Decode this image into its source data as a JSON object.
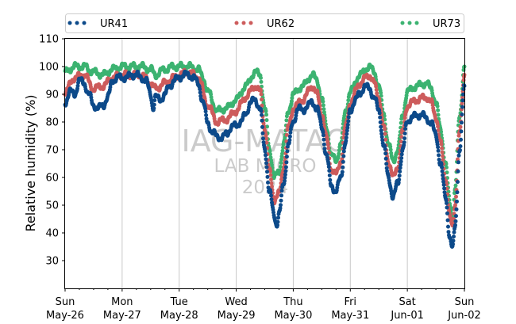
{
  "chart_data": {
    "type": "scatter",
    "ylabel": "Relative humidity (%)",
    "xlabel": "",
    "ylim": [
      20,
      110
    ],
    "xlim": [
      "2024-05-26 00:00",
      "2024-06-02 00:00"
    ],
    "grid": "vertical",
    "legend": "top",
    "yticks": [
      30,
      40,
      50,
      60,
      70,
      80,
      90,
      100,
      110
    ],
    "xticks": [
      {
        "day": "Sun",
        "date": "May-26"
      },
      {
        "day": "Mon",
        "date": "May-27"
      },
      {
        "day": "Tue",
        "date": "May-28"
      },
      {
        "day": "Wed",
        "date": "May-29"
      },
      {
        "day": "Thu",
        "date": "May-30"
      },
      {
        "day": "Fri",
        "date": "May-31"
      },
      {
        "day": "Sat",
        "date": "Jun-01"
      },
      {
        "day": "Sun",
        "date": "Jun-02"
      }
    ],
    "watermark": [
      "IAG-MATAO",
      "LAB MICRO",
      "2024"
    ],
    "series": [
      {
        "name": "UR41",
        "color": "#0d4a8a",
        "points": [
          [
            "2024-05-26 00:00",
            87
          ],
          [
            "2024-05-26 02:00",
            91
          ],
          [
            "2024-05-26 04:00",
            90
          ],
          [
            "2024-05-26 06:00",
            95
          ],
          [
            "2024-05-26 08:00",
            94
          ],
          [
            "2024-05-26 10:00",
            90
          ],
          [
            "2024-05-26 12:00",
            86
          ],
          [
            "2024-05-26 14:00",
            85
          ],
          [
            "2024-05-26 16:00",
            86
          ],
          [
            "2024-05-26 18:00",
            89
          ],
          [
            "2024-05-26 20:00",
            95
          ],
          [
            "2024-05-26 22:00",
            96
          ],
          [
            "2024-05-27 00:00",
            96
          ],
          [
            "2024-05-27 02:00",
            96
          ],
          [
            "2024-05-27 04:00",
            97
          ],
          [
            "2024-05-27 06:00",
            97
          ],
          [
            "2024-05-27 08:00",
            96
          ],
          [
            "2024-05-27 10:00",
            95
          ],
          [
            "2024-05-27 12:00",
            90
          ],
          [
            "2024-05-27 13:00",
            85
          ],
          [
            "2024-05-27 14:00",
            89
          ],
          [
            "2024-05-27 16:00",
            88
          ],
          [
            "2024-05-27 18:00",
            90
          ],
          [
            "2024-05-27 20:00",
            93
          ],
          [
            "2024-05-27 22:00",
            95
          ],
          [
            "2024-05-28 00:00",
            96
          ],
          [
            "2024-05-28 02:00",
            97
          ],
          [
            "2024-05-28 04:00",
            97
          ],
          [
            "2024-05-28 06:00",
            96
          ],
          [
            "2024-05-28 08:00",
            94
          ],
          [
            "2024-05-28 10:00",
            87
          ],
          [
            "2024-05-28 12:00",
            80
          ],
          [
            "2024-05-28 14:00",
            76
          ],
          [
            "2024-05-28 16:00",
            75
          ],
          [
            "2024-05-28 18:00",
            74
          ],
          [
            "2024-05-28 20:00",
            76
          ],
          [
            "2024-05-28 22:00",
            78
          ],
          [
            "2024-05-29 00:00",
            79
          ],
          [
            "2024-05-29 02:00",
            80
          ],
          [
            "2024-05-29 04:00",
            83
          ],
          [
            "2024-05-29 06:00",
            87
          ],
          [
            "2024-05-29 08:00",
            88
          ],
          [
            "2024-05-29 10:00",
            85
          ],
          [
            "2024-05-29 12:00",
            70
          ],
          [
            "2024-05-29 14:00",
            55
          ],
          [
            "2024-05-29 16:00",
            46
          ],
          [
            "2024-05-29 17:00",
            43
          ],
          [
            "2024-05-29 18:00",
            47
          ],
          [
            "2024-05-29 20:00",
            58
          ],
          [
            "2024-05-29 22:00",
            72
          ],
          [
            "2024-05-30 00:00",
            80
          ],
          [
            "2024-05-30 02:00",
            85
          ],
          [
            "2024-05-30 04:00",
            84
          ],
          [
            "2024-05-30 06:00",
            86
          ],
          [
            "2024-05-30 08:00",
            87
          ],
          [
            "2024-05-30 10:00",
            85
          ],
          [
            "2024-05-30 12:00",
            78
          ],
          [
            "2024-05-30 14:00",
            68
          ],
          [
            "2024-05-30 16:00",
            57
          ],
          [
            "2024-05-30 18:00",
            55
          ],
          [
            "2024-05-30 20:00",
            60
          ],
          [
            "2024-05-30 22:00",
            73
          ],
          [
            "2024-05-31 00:00",
            84
          ],
          [
            "2024-05-31 02:00",
            88
          ],
          [
            "2024-05-31 04:00",
            90
          ],
          [
            "2024-05-31 06:00",
            93
          ],
          [
            "2024-05-31 08:00",
            92
          ],
          [
            "2024-05-31 10:00",
            89
          ],
          [
            "2024-05-31 12:00",
            84
          ],
          [
            "2024-05-31 14:00",
            72
          ],
          [
            "2024-05-31 16:00",
            60
          ],
          [
            "2024-05-31 18:00",
            53
          ],
          [
            "2024-05-31 20:00",
            58
          ],
          [
            "2024-05-31 22:00",
            70
          ],
          [
            "2024-06-01 00:00",
            80
          ],
          [
            "2024-06-01 02:00",
            82
          ],
          [
            "2024-06-01 04:00",
            82
          ],
          [
            "2024-06-01 06:00",
            83
          ],
          [
            "2024-06-01 08:00",
            81
          ],
          [
            "2024-06-01 10:00",
            80
          ],
          [
            "2024-06-01 12:00",
            75
          ],
          [
            "2024-06-01 14:00",
            65
          ],
          [
            "2024-06-01 16:00",
            53
          ],
          [
            "2024-06-01 18:00",
            38
          ],
          [
            "2024-06-01 19:00",
            34
          ],
          [
            "2024-06-01 20:00",
            42
          ],
          [
            "2024-06-01 22:00",
            70
          ],
          [
            "2024-06-02 00:00",
            93
          ]
        ]
      },
      {
        "name": "UR62",
        "color": "#cd5c5c",
        "points": [
          [
            "2024-05-26 00:00",
            91
          ],
          [
            "2024-05-26 04:00",
            96
          ],
          [
            "2024-05-26 08:00",
            97
          ],
          [
            "2024-05-26 12:00",
            92
          ],
          [
            "2024-05-26 16:00",
            93
          ],
          [
            "2024-05-26 20:00",
            96
          ],
          [
            "2024-05-27 00:00",
            97
          ],
          [
            "2024-05-27 04:00",
            97
          ],
          [
            "2024-05-27 08:00",
            97
          ],
          [
            "2024-05-27 12:00",
            94
          ],
          [
            "2024-05-27 14:00",
            92
          ],
          [
            "2024-05-27 18:00",
            94
          ],
          [
            "2024-05-27 22:00",
            96
          ],
          [
            "2024-05-28 00:00",
            97
          ],
          [
            "2024-05-28 04:00",
            98
          ],
          [
            "2024-05-28 08:00",
            96
          ],
          [
            "2024-05-28 12:00",
            86
          ],
          [
            "2024-05-28 16:00",
            80
          ],
          [
            "2024-05-28 20:00",
            81
          ],
          [
            "2024-05-29 00:00",
            84
          ],
          [
            "2024-05-29 04:00",
            89
          ],
          [
            "2024-05-29 08:00",
            93
          ],
          [
            "2024-05-29 10:00",
            91
          ],
          [
            "2024-05-29 12:00",
            78
          ],
          [
            "2024-05-29 14:00",
            62
          ],
          [
            "2024-05-29 16:00",
            52
          ],
          [
            "2024-05-29 18:00",
            54
          ],
          [
            "2024-05-29 20:00",
            64
          ],
          [
            "2024-05-29 22:00",
            78
          ],
          [
            "2024-05-30 00:00",
            85
          ],
          [
            "2024-05-30 04:00",
            88
          ],
          [
            "2024-05-30 08:00",
            93
          ],
          [
            "2024-05-30 10:00",
            90
          ],
          [
            "2024-05-30 12:00",
            83
          ],
          [
            "2024-05-30 14:00",
            74
          ],
          [
            "2024-05-30 16:00",
            63
          ],
          [
            "2024-05-30 18:00",
            61
          ],
          [
            "2024-05-30 20:00",
            66
          ],
          [
            "2024-05-30 22:00",
            78
          ],
          [
            "2024-05-31 00:00",
            87
          ],
          [
            "2024-05-31 04:00",
            94
          ],
          [
            "2024-05-31 08:00",
            97
          ],
          [
            "2024-05-31 10:00",
            94
          ],
          [
            "2024-05-31 12:00",
            89
          ],
          [
            "2024-05-31 14:00",
            78
          ],
          [
            "2024-05-31 16:00",
            66
          ],
          [
            "2024-05-31 18:00",
            60
          ],
          [
            "2024-05-31 20:00",
            64
          ],
          [
            "2024-05-31 22:00",
            76
          ],
          [
            "2024-06-01 00:00",
            86
          ],
          [
            "2024-06-01 04:00",
            88
          ],
          [
            "2024-06-01 08:00",
            89
          ],
          [
            "2024-06-01 10:00",
            87
          ],
          [
            "2024-06-01 12:00",
            82
          ],
          [
            "2024-06-01 14:00",
            72
          ],
          [
            "2024-06-01 16:00",
            60
          ],
          [
            "2024-06-01 18:00",
            45
          ],
          [
            "2024-06-01 19:00",
            42
          ],
          [
            "2024-06-01 20:00",
            50
          ],
          [
            "2024-06-01 22:00",
            76
          ],
          [
            "2024-06-02 00:00",
            97
          ]
        ]
      },
      {
        "name": "UR73",
        "color": "#3cb371",
        "points": [
          [
            "2024-05-26 00:00",
            98
          ],
          [
            "2024-05-26 04:00",
            100
          ],
          [
            "2024-05-26 08:00",
            100
          ],
          [
            "2024-05-26 12:00",
            98
          ],
          [
            "2024-05-26 16:00",
            97
          ],
          [
            "2024-05-26 20:00",
            99
          ],
          [
            "2024-05-27 00:00",
            100
          ],
          [
            "2024-05-27 04:00",
            100
          ],
          [
            "2024-05-27 08:00",
            100
          ],
          [
            "2024-05-27 12:00",
            99
          ],
          [
            "2024-05-27 14:00",
            97
          ],
          [
            "2024-05-27 18:00",
            99
          ],
          [
            "2024-05-27 22:00",
            100
          ],
          [
            "2024-05-28 00:00",
            100
          ],
          [
            "2024-05-28 04:00",
            100
          ],
          [
            "2024-05-28 08:00",
            99
          ],
          [
            "2024-05-28 10:00",
            96
          ],
          [
            "2024-05-28 12:00",
            91
          ],
          [
            "2024-05-28 16:00",
            84
          ],
          [
            "2024-05-28 20:00",
            85
          ],
          [
            "2024-05-29 00:00",
            88
          ],
          [
            "2024-05-29 04:00",
            93
          ],
          [
            "2024-05-29 08:00",
            98
          ],
          [
            "2024-05-29 10:00",
            97
          ],
          [
            "2024-05-29 12:00",
            85
          ],
          [
            "2024-05-29 14:00",
            70
          ],
          [
            "2024-05-29 16:00",
            60
          ],
          [
            "2024-05-29 18:00",
            62
          ],
          [
            "2024-05-29 20:00",
            72
          ],
          [
            "2024-05-29 22:00",
            84
          ],
          [
            "2024-05-30 00:00",
            90
          ],
          [
            "2024-05-30 04:00",
            93
          ],
          [
            "2024-05-30 08:00",
            97
          ],
          [
            "2024-05-30 10:00",
            95
          ],
          [
            "2024-05-30 12:00",
            88
          ],
          [
            "2024-05-30 14:00",
            78
          ],
          [
            "2024-05-30 16:00",
            68
          ],
          [
            "2024-05-30 18:00",
            66
          ],
          [
            "2024-05-30 20:00",
            72
          ],
          [
            "2024-05-30 22:00",
            84
          ],
          [
            "2024-05-31 00:00",
            91
          ],
          [
            "2024-05-31 04:00",
            97
          ],
          [
            "2024-05-31 08:00",
            100
          ],
          [
            "2024-05-31 10:00",
            98
          ],
          [
            "2024-05-31 12:00",
            93
          ],
          [
            "2024-05-31 14:00",
            83
          ],
          [
            "2024-05-31 16:00",
            72
          ],
          [
            "2024-05-31 18:00",
            66
          ],
          [
            "2024-05-31 20:00",
            70
          ],
          [
            "2024-05-31 22:00",
            82
          ],
          [
            "2024-06-01 00:00",
            91
          ],
          [
            "2024-06-01 04:00",
            93
          ],
          [
            "2024-06-01 08:00",
            94
          ],
          [
            "2024-06-01 10:00",
            92
          ],
          [
            "2024-06-01 12:00",
            87
          ],
          [
            "2024-06-01 14:00",
            77
          ],
          [
            "2024-06-01 16:00",
            65
          ],
          [
            "2024-06-01 18:00",
            50
          ],
          [
            "2024-06-01 19:00",
            45
          ],
          [
            "2024-06-01 20:00",
            55
          ],
          [
            "2024-06-01 22:00",
            82
          ],
          [
            "2024-06-02 00:00",
            100
          ]
        ]
      }
    ]
  }
}
